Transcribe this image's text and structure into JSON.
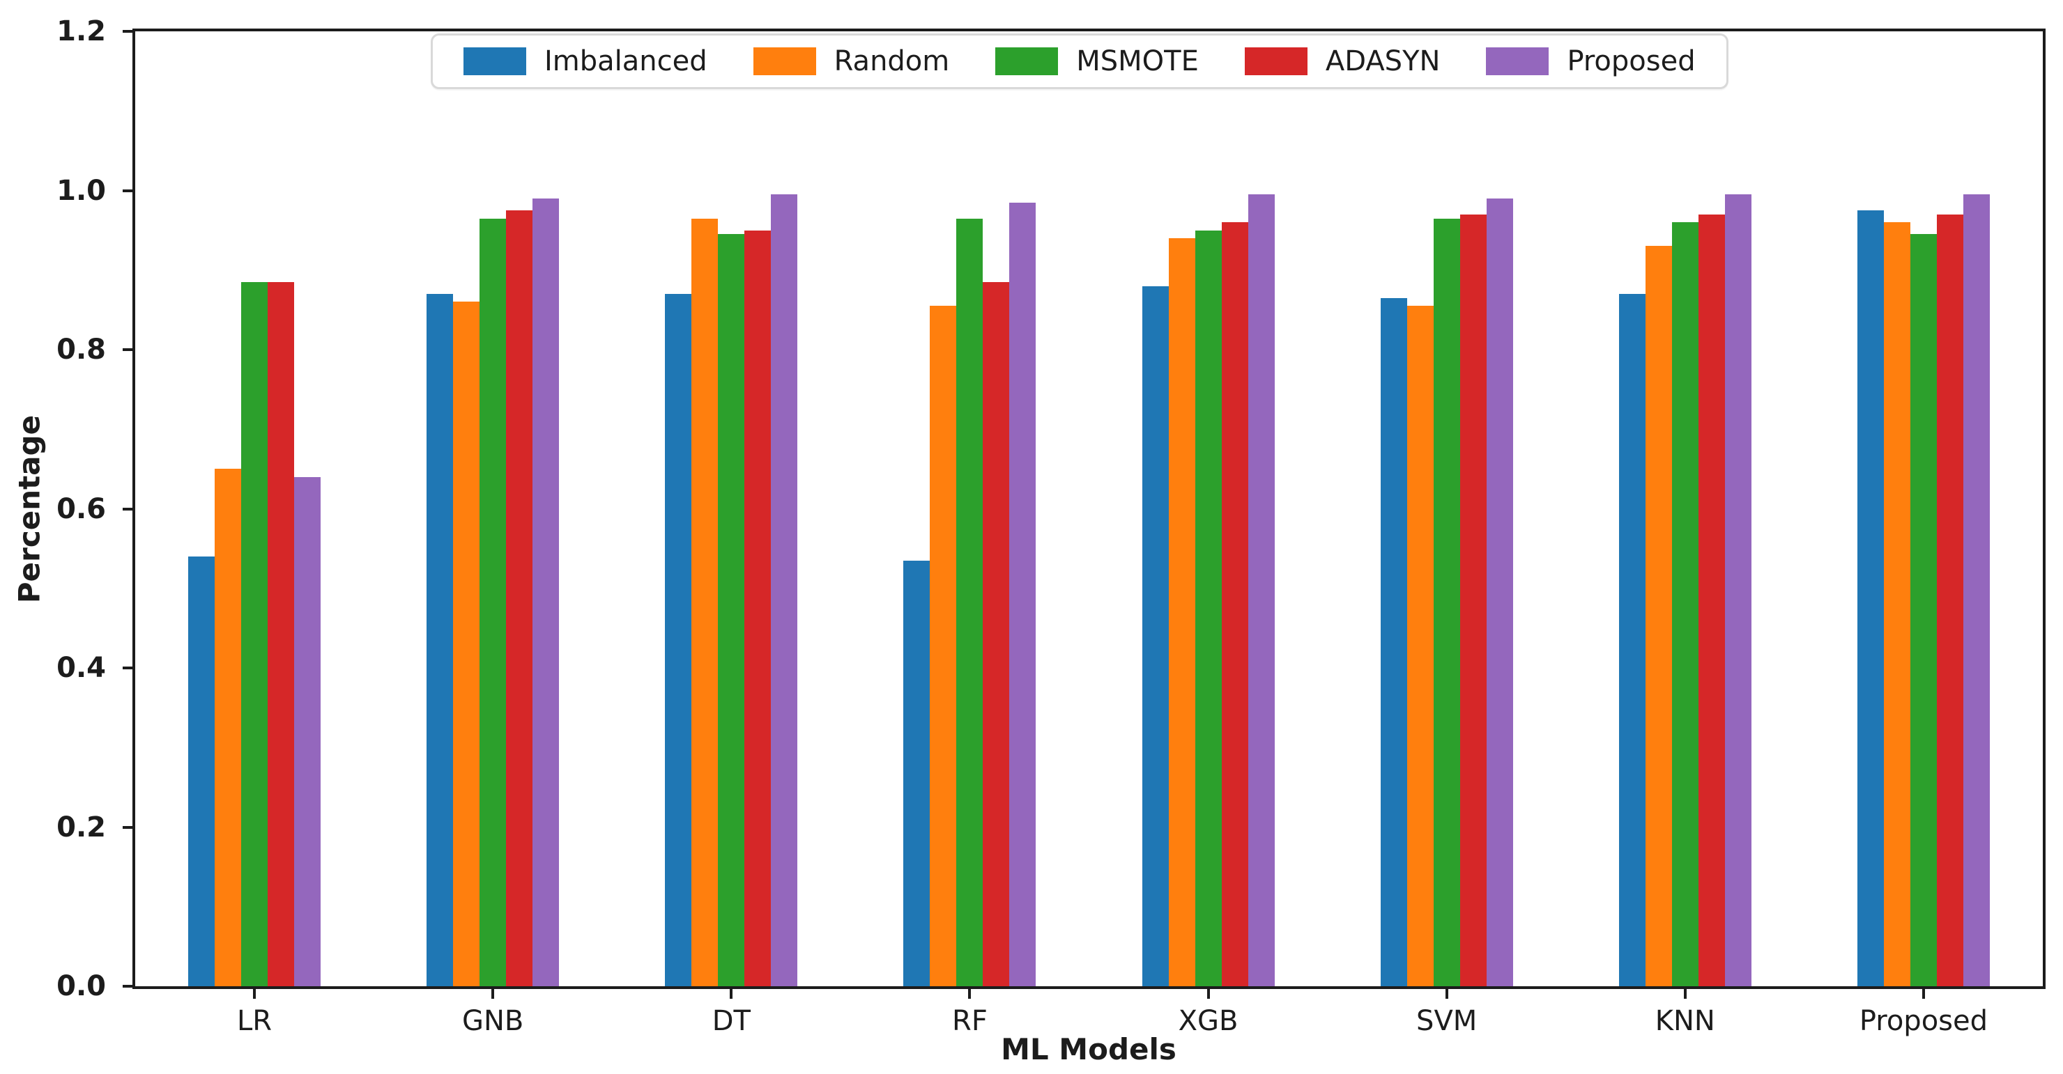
{
  "figure": {
    "background": "#ffffff",
    "axis_color": "#1c1c1c",
    "legend_border_color": "#d9d9d9"
  },
  "chart_data": {
    "type": "bar",
    "title": "",
    "xlabel": "ML Models",
    "ylabel": "Percentage",
    "ylim": [
      0,
      1.2
    ],
    "yticks": [
      0.0,
      0.2,
      0.4,
      0.6,
      0.8,
      1.0,
      1.2
    ],
    "grid": false,
    "legend_position": "top-center",
    "categories": [
      "LR",
      "GNB",
      "DT",
      "RF",
      "XGB",
      "SVM",
      "KNN",
      "Proposed"
    ],
    "series": [
      {
        "name": "Imbalanced",
        "color": "#1f77b4",
        "values": [
          0.54,
          0.87,
          0.87,
          0.535,
          0.88,
          0.865,
          0.87,
          0.975
        ]
      },
      {
        "name": "Random",
        "color": "#ff7f0e",
        "values": [
          0.65,
          0.86,
          0.965,
          0.855,
          0.94,
          0.855,
          0.93,
          0.96
        ]
      },
      {
        "name": "MSMOTE",
        "color": "#2ca02c",
        "values": [
          0.885,
          0.965,
          0.945,
          0.965,
          0.95,
          0.965,
          0.96,
          0.945
        ]
      },
      {
        "name": "ADASYN",
        "color": "#d62728",
        "values": [
          0.885,
          0.975,
          0.95,
          0.885,
          0.96,
          0.97,
          0.97,
          0.97
        ]
      },
      {
        "name": "Proposed",
        "color": "#9467bd",
        "values": [
          0.64,
          0.99,
          0.995,
          0.985,
          0.995,
          0.99,
          0.995,
          0.995
        ]
      }
    ]
  }
}
